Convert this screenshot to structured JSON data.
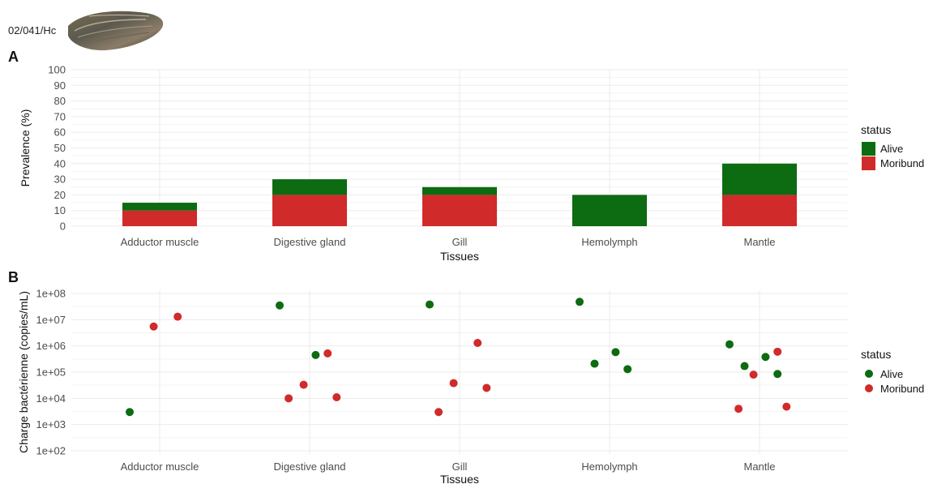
{
  "header": {
    "specimen_id": "02/041/Hc",
    "image_icon": "oyster-shell-photo"
  },
  "colors": {
    "alive": "#0d6b12",
    "moribund": "#d12a2a",
    "grid": "#ebebeb"
  },
  "chart_data": [
    {
      "panel_label": "A",
      "type": "bar",
      "stacked": true,
      "categories": [
        "Adductor muscle",
        "Digestive gland",
        "Gill",
        "Hemolymph",
        "Mantle"
      ],
      "series": [
        {
          "name": "Moribund",
          "values": [
            10,
            20,
            20,
            0,
            20
          ]
        },
        {
          "name": "Alive",
          "values": [
            5,
            10,
            5,
            20,
            20
          ]
        }
      ],
      "xlabel": "Tissues",
      "ylabel": "Prevalence (%)",
      "ylim": [
        0,
        100
      ],
      "yticks": [
        "0",
        "10",
        "20",
        "30",
        "40",
        "50",
        "60",
        "70",
        "80",
        "90",
        "100"
      ],
      "legend": {
        "title": "status",
        "entries": [
          "Alive",
          "Moribund"
        ],
        "position": "right"
      },
      "grid": true
    },
    {
      "panel_label": "B",
      "type": "scatter",
      "y_scale": "log10",
      "categories": [
        "Adductor muscle",
        "Digestive gland",
        "Gill",
        "Hemolymph",
        "Mantle"
      ],
      "series": [
        {
          "name": "Alive",
          "points": [
            {
              "category": "Adductor muscle",
              "y": 3000
            },
            {
              "category": "Digestive gland",
              "y": 35000000
            },
            {
              "category": "Digestive gland",
              "y": 450000
            },
            {
              "category": "Gill",
              "y": 38000000
            },
            {
              "category": "Hemolymph",
              "y": 48000000
            },
            {
              "category": "Hemolymph",
              "y": 580000
            },
            {
              "category": "Hemolymph",
              "y": 210000
            },
            {
              "category": "Hemolymph",
              "y": 130000
            },
            {
              "category": "Mantle",
              "y": 1150000
            },
            {
              "category": "Mantle",
              "y": 380000
            },
            {
              "category": "Mantle",
              "y": 170000
            },
            {
              "category": "Mantle",
              "y": 85000
            }
          ]
        },
        {
          "name": "Moribund",
          "points": [
            {
              "category": "Adductor muscle",
              "y": 13000000
            },
            {
              "category": "Adductor muscle",
              "y": 5500000
            },
            {
              "category": "Digestive gland",
              "y": 520000
            },
            {
              "category": "Digestive gland",
              "y": 33000
            },
            {
              "category": "Digestive gland",
              "y": 11000
            },
            {
              "category": "Digestive gland",
              "y": 10000
            },
            {
              "category": "Gill",
              "y": 1300000
            },
            {
              "category": "Gill",
              "y": 38000
            },
            {
              "category": "Gill",
              "y": 25000
            },
            {
              "category": "Gill",
              "y": 3000
            },
            {
              "category": "Mantle",
              "y": 600000
            },
            {
              "category": "Mantle",
              "y": 80000
            },
            {
              "category": "Mantle",
              "y": 4800
            },
            {
              "category": "Mantle",
              "y": 4000
            }
          ]
        }
      ],
      "xlabel": "Tissues",
      "ylabel": "Charge bactérienne (copies/mL)",
      "ylim": [
        100,
        100000000
      ],
      "yticks": [
        "1e+02",
        "1e+03",
        "1e+04",
        "1e+05",
        "1e+06",
        "1e+07",
        "1e+08"
      ],
      "legend": {
        "title": "status",
        "entries": [
          "Alive",
          "Moribund"
        ],
        "position": "right"
      },
      "grid": true
    }
  ]
}
